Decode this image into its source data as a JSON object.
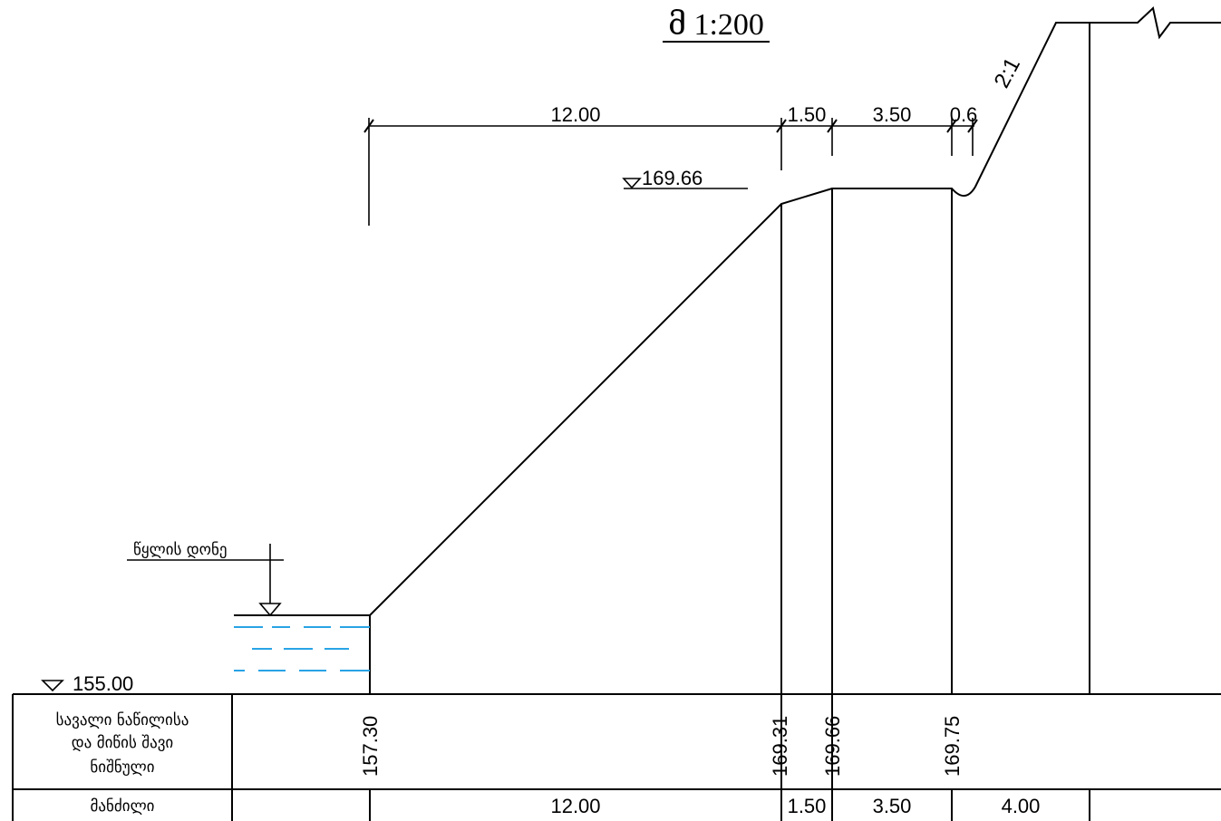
{
  "scale_label": "მ 1:200",
  "slope_label": "2:1",
  "dimensions": [
    "12.00",
    "1.50",
    "3.50",
    "0.6"
  ],
  "elevation_marks": {
    "crest": "169.66",
    "base": "155.00"
  },
  "water_level_label": "წყლის დონე",
  "table": {
    "row1_label_lines": [
      "სავალი ნაწილისა",
      "და მიწის შავი",
      "ნიშნული"
    ],
    "row1_values": [
      "157.30",
      "169.31",
      "169.66",
      "169.75"
    ],
    "row2_label": "მანძილი",
    "row2_values": [
      "12.00",
      "1.50",
      "3.50",
      "4.00"
    ]
  },
  "colors": {
    "lines": "#000000",
    "water": "#29a3e6"
  }
}
